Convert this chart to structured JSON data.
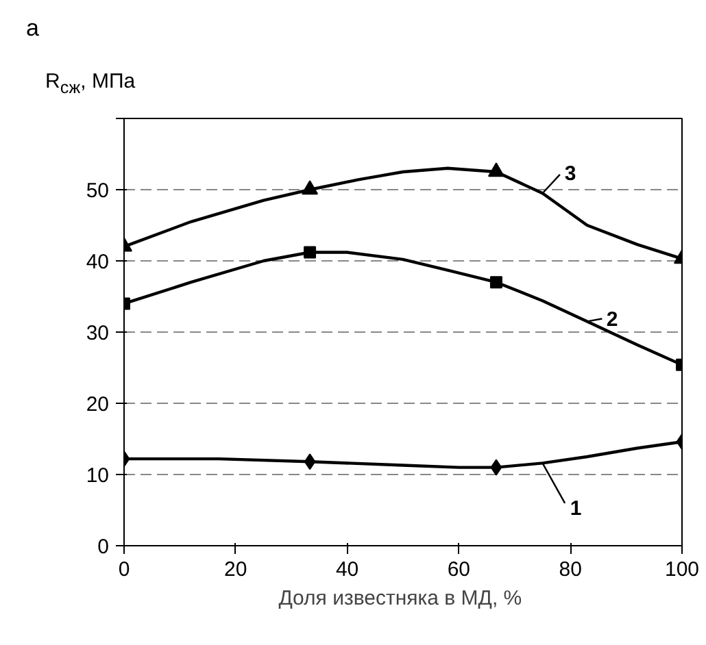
{
  "chart_data": {
    "type": "line",
    "title": "а",
    "ylabel": "R$_{сж}$, МПа",
    "xlabel": "Доля известняка в  МД, %",
    "xlim": [
      0,
      100
    ],
    "ylim": [
      0,
      60
    ],
    "xticks": [
      0,
      20,
      40,
      60,
      80,
      100
    ],
    "yticks": [
      0,
      10,
      20,
      30,
      40,
      50,
      {
        "value": 60,
        "label": null
      }
    ],
    "grid": "y",
    "legend": "right",
    "line_style": "solid",
    "series": [
      {
        "name": "3",
        "color": "#000000",
        "marker": "none",
        "x": [
          0,
          12,
          25,
          33.3,
          42,
          50,
          58,
          66.7,
          75,
          83,
          92,
          100
        ],
        "values": [
          42,
          45.5,
          48.5,
          50,
          51.4,
          52.5,
          53,
          52.5,
          49.5,
          45,
          42.3,
          40.3
        ]
      },
      {
        "name": "2",
        "color": "#000000",
        "marker": "none",
        "x": [
          0,
          12,
          25,
          33.3,
          40,
          50,
          58,
          66.7,
          75,
          83,
          92,
          100
        ],
        "values": [
          34,
          37,
          40,
          41.2,
          41.2,
          40.2,
          38.7,
          37,
          34.4,
          31.5,
          28.2,
          25.4
        ]
      },
      {
        "name": "1",
        "color": "#000000",
        "marker": "none",
        "x": [
          0,
          17,
          33.3,
          50,
          60,
          66.7,
          75,
          83,
          92,
          100
        ],
        "values": [
          12.2,
          12.2,
          11.8,
          11.3,
          11,
          11,
          11.6,
          12.5,
          13.7,
          14.6
        ]
      },
      {
        "type": "scatter",
        "color": "#000000",
        "marker": "triangle",
        "x": [
          0,
          33.3,
          66.7,
          100
        ],
        "values": [
          42,
          50,
          52.5,
          40.3
        ]
      },
      {
        "type": "scatter",
        "color": "#000000",
        "marker": "square",
        "x": [
          0,
          33.3,
          66.7,
          100
        ],
        "values": [
          34,
          41.2,
          37,
          25.4
        ]
      },
      {
        "type": "scatter",
        "color": "#000000",
        "marker": "diamond",
        "x": [
          0,
          33.3,
          66.7,
          100
        ],
        "values": [
          12.2,
          11.8,
          11,
          14.6
        ]
      }
    ]
  }
}
